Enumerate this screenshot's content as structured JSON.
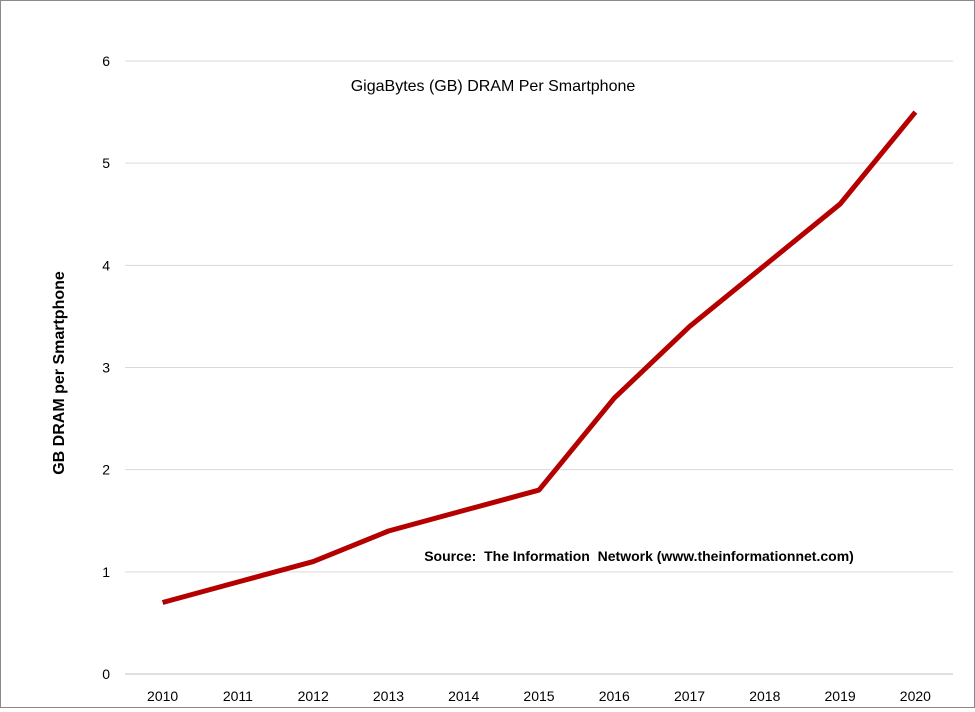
{
  "chart_data": {
    "type": "line",
    "title": "GigaBytes (GB) DRAM Per Smartphone",
    "ylabel": "GB DRAM per Smartphone",
    "xlabel": "",
    "annotation": "Source:  The Information  Network (www.theinformationnet.com)",
    "categories": [
      "2010",
      "2011",
      "2012",
      "2013",
      "2014",
      "2015",
      "2016",
      "2017",
      "2018",
      "2019",
      "2020"
    ],
    "series": [
      {
        "values": [
          0.7,
          0.9,
          1.1,
          1.4,
          1.6,
          1.8,
          2.7,
          3.4,
          4.0,
          4.6,
          5.5
        ]
      }
    ],
    "ylim": [
      0,
      6
    ],
    "yticks": [
      "0",
      "1",
      "2",
      "3",
      "4",
      "5",
      "6"
    ],
    "grid": true,
    "line_color": "#b50000",
    "grid_color": "#d9d9d9"
  }
}
